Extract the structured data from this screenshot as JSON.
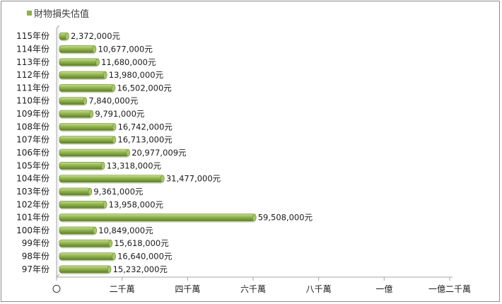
{
  "chart_data": {
    "type": "bar",
    "orientation": "horizontal",
    "title": "",
    "legend": {
      "label": "財物損失估值",
      "color": "#8db04a",
      "position": "top-left"
    },
    "categories": [
      "115年份",
      "114年份",
      "113年份",
      "112年份",
      "111年份",
      "110年份",
      "109年份",
      "108年份",
      "107年份",
      "106年份",
      "105年份",
      "104年份",
      "103年份",
      "102年份",
      "101年份",
      "100年份",
      "99年份",
      "98年份",
      "97年份"
    ],
    "values": [
      2372000,
      10677000,
      11680000,
      13980000,
      16502000,
      7840000,
      9791000,
      16742000,
      16713000,
      20977009,
      13318000,
      31477000,
      9361000,
      13958000,
      59508000,
      10849000,
      15618000,
      16640000,
      15232000
    ],
    "value_labels": [
      "2,372,000元",
      "10,677,000元",
      "11,680,000元",
      "13,980,000元",
      "16,502,000元",
      "7,840,000元",
      "9,791,000元",
      "16,742,000元",
      "16,713,000元",
      "20,977,009元",
      "13,318,000元",
      "31,477,000元",
      "9,361,000元",
      "13,958,000元",
      "59,508,000元",
      "10,849,000元",
      "15,618,000元",
      "16,640,000元",
      "15,232,000元"
    ],
    "x_ticks": [
      0,
      20000000,
      40000000,
      60000000,
      80000000,
      100000000,
      120000000
    ],
    "x_tick_labels": [
      "〇",
      "二千萬",
      "四千萬",
      "六千萬",
      "八千萬",
      "一億",
      "一億二千萬"
    ],
    "xlim": [
      0,
      120000000
    ],
    "grid": false,
    "bar_color": "#8db04a"
  }
}
